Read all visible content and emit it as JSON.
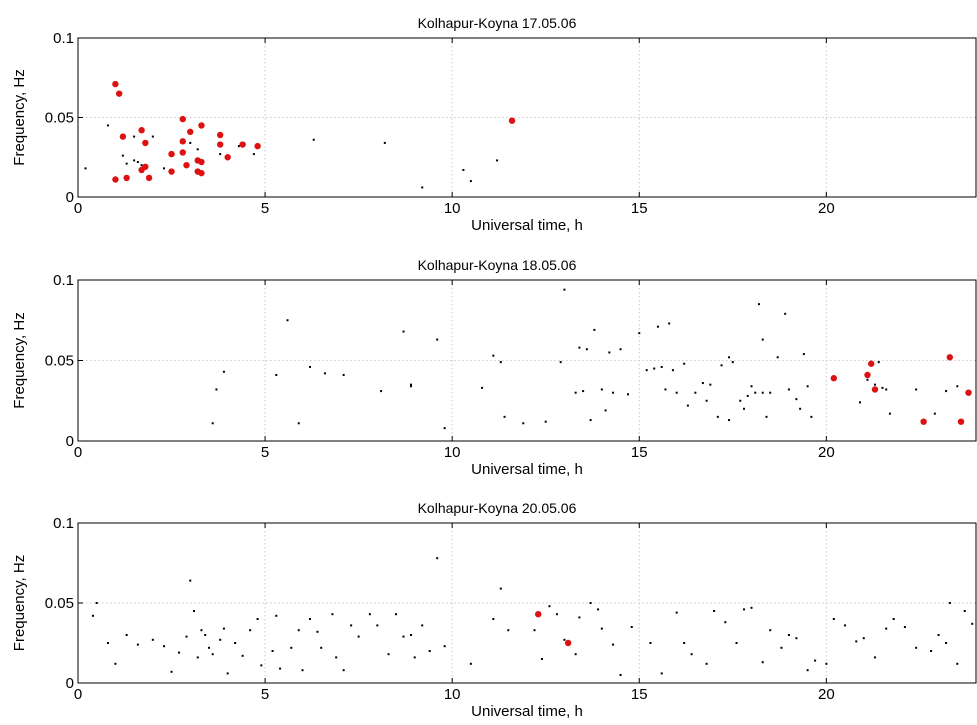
{
  "chart_data": [
    {
      "type": "scatter",
      "title": "Kolhapur-Koyna 17.05.06",
      "xlabel": "Universal time, h",
      "ylabel": "Frequency, Hz",
      "xlim": [
        0,
        24
      ],
      "ylim": [
        0,
        0.1
      ],
      "xticks": [
        0,
        5,
        10,
        15,
        20
      ],
      "yticks": [
        0,
        0.05,
        0.1
      ],
      "xtick_labels": [
        "0",
        "5",
        "10",
        "15",
        "20"
      ],
      "ytick_labels": [
        "0",
        "0.05",
        "0.1"
      ],
      "grid": true,
      "series": [
        {
          "color": "#000000",
          "marker": "small-dot",
          "points": [
            [
              0.2,
              0.018
            ],
            [
              0.8,
              0.045
            ],
            [
              1.2,
              0.026
            ],
            [
              1.3,
              0.021
            ],
            [
              1.5,
              0.038
            ],
            [
              1.5,
              0.023
            ],
            [
              1.6,
              0.022
            ],
            [
              1.7,
              0.02
            ],
            [
              2.0,
              0.038
            ],
            [
              2.3,
              0.018
            ],
            [
              3.0,
              0.034
            ],
            [
              3.2,
              0.03
            ],
            [
              3.8,
              0.027
            ],
            [
              4.3,
              0.032
            ],
            [
              4.7,
              0.027
            ],
            [
              6.3,
              0.036
            ],
            [
              8.2,
              0.034
            ],
            [
              9.2,
              0.006
            ],
            [
              10.3,
              0.017
            ],
            [
              10.5,
              0.01
            ],
            [
              11.2,
              0.023
            ]
          ]
        },
        {
          "color": "#dd1111",
          "marker": "large-dot",
          "points": [
            [
              1.0,
              0.011
            ],
            [
              1.0,
              0.071
            ],
            [
              1.1,
              0.065
            ],
            [
              1.2,
              0.038
            ],
            [
              1.3,
              0.012
            ],
            [
              1.7,
              0.042
            ],
            [
              1.7,
              0.017
            ],
            [
              1.8,
              0.034
            ],
            [
              1.8,
              0.019
            ],
            [
              1.9,
              0.012
            ],
            [
              2.5,
              0.016
            ],
            [
              2.5,
              0.027
            ],
            [
              2.8,
              0.049
            ],
            [
              2.8,
              0.035
            ],
            [
              2.8,
              0.028
            ],
            [
              2.9,
              0.02
            ],
            [
              3.0,
              0.041
            ],
            [
              3.2,
              0.023
            ],
            [
              3.2,
              0.016
            ],
            [
              3.3,
              0.045
            ],
            [
              3.3,
              0.022
            ],
            [
              3.3,
              0.015
            ],
            [
              3.8,
              0.039
            ],
            [
              3.8,
              0.033
            ],
            [
              4.0,
              0.025
            ],
            [
              4.4,
              0.033
            ],
            [
              4.8,
              0.032
            ],
            [
              11.6,
              0.048
            ]
          ]
        }
      ]
    },
    {
      "type": "scatter",
      "title": "Kolhapur-Koyna 18.05.06",
      "xlabel": "Universal time, h",
      "ylabel": "Frequency, Hz",
      "xlim": [
        0,
        24
      ],
      "ylim": [
        0,
        0.1
      ],
      "xticks": [
        0,
        5,
        10,
        15,
        20
      ],
      "yticks": [
        0,
        0.05,
        0.1
      ],
      "xtick_labels": [
        "0",
        "5",
        "10",
        "15",
        "20"
      ],
      "ytick_labels": [
        "0",
        "0.05",
        "0.1"
      ],
      "grid": true,
      "series": [
        {
          "color": "#000000",
          "marker": "small-dot",
          "points": [
            [
              3.6,
              0.011
            ],
            [
              3.7,
              0.032
            ],
            [
              3.9,
              0.043
            ],
            [
              5.3,
              0.041
            ],
            [
              5.6,
              0.075
            ],
            [
              5.9,
              0.011
            ],
            [
              6.2,
              0.046
            ],
            [
              6.6,
              0.042
            ],
            [
              7.1,
              0.041
            ],
            [
              8.1,
              0.031
            ],
            [
              8.7,
              0.068
            ],
            [
              8.9,
              0.034
            ],
            [
              8.9,
              0.035
            ],
            [
              9.6,
              0.063
            ],
            [
              9.8,
              0.008
            ],
            [
              10.8,
              0.033
            ],
            [
              11.1,
              0.053
            ],
            [
              11.3,
              0.049
            ],
            [
              11.4,
              0.015
            ],
            [
              11.9,
              0.011
            ],
            [
              12.5,
              0.012
            ],
            [
              12.9,
              0.049
            ],
            [
              13.0,
              0.094
            ],
            [
              13.3,
              0.03
            ],
            [
              13.4,
              0.058
            ],
            [
              13.5,
              0.031
            ],
            [
              13.6,
              0.057
            ],
            [
              13.7,
              0.013
            ],
            [
              13.8,
              0.069
            ],
            [
              14.0,
              0.032
            ],
            [
              14.1,
              0.019
            ],
            [
              14.2,
              0.055
            ],
            [
              14.3,
              0.03
            ],
            [
              14.5,
              0.057
            ],
            [
              14.7,
              0.029
            ],
            [
              15.0,
              0.067
            ],
            [
              15.2,
              0.044
            ],
            [
              15.4,
              0.045
            ],
            [
              15.5,
              0.071
            ],
            [
              15.6,
              0.046
            ],
            [
              15.7,
              0.032
            ],
            [
              15.8,
              0.073
            ],
            [
              15.9,
              0.044
            ],
            [
              16.0,
              0.03
            ],
            [
              16.2,
              0.048
            ],
            [
              16.3,
              0.022
            ],
            [
              16.5,
              0.03
            ],
            [
              16.7,
              0.036
            ],
            [
              16.8,
              0.025
            ],
            [
              16.9,
              0.035
            ],
            [
              17.1,
              0.015
            ],
            [
              17.2,
              0.047
            ],
            [
              17.4,
              0.052
            ],
            [
              17.4,
              0.013
            ],
            [
              17.5,
              0.049
            ],
            [
              17.7,
              0.025
            ],
            [
              17.8,
              0.02
            ],
            [
              17.9,
              0.028
            ],
            [
              18.0,
              0.034
            ],
            [
              18.1,
              0.03
            ],
            [
              18.2,
              0.085
            ],
            [
              18.3,
              0.03
            ],
            [
              18.3,
              0.063
            ],
            [
              18.4,
              0.015
            ],
            [
              18.5,
              0.03
            ],
            [
              18.7,
              0.052
            ],
            [
              18.9,
              0.079
            ],
            [
              19.0,
              0.032
            ],
            [
              19.2,
              0.026
            ],
            [
              19.3,
              0.02
            ],
            [
              19.4,
              0.054
            ],
            [
              19.5,
              0.034
            ],
            [
              19.6,
              0.015
            ],
            [
              20.9,
              0.024
            ],
            [
              21.1,
              0.038
            ],
            [
              21.3,
              0.035
            ],
            [
              21.4,
              0.049
            ],
            [
              21.5,
              0.033
            ],
            [
              21.6,
              0.032
            ],
            [
              21.7,
              0.017
            ],
            [
              22.4,
              0.032
            ],
            [
              22.9,
              0.017
            ],
            [
              23.2,
              0.031
            ],
            [
              23.5,
              0.034
            ]
          ]
        },
        {
          "color": "#dd1111",
          "marker": "large-dot",
          "points": [
            [
              20.2,
              0.039
            ],
            [
              21.1,
              0.041
            ],
            [
              21.2,
              0.048
            ],
            [
              21.3,
              0.032
            ],
            [
              22.6,
              0.012
            ],
            [
              23.3,
              0.052
            ],
            [
              23.6,
              0.012
            ],
            [
              23.8,
              0.03
            ]
          ]
        }
      ]
    },
    {
      "type": "scatter",
      "title": "Kolhapur-Koyna 20.05.06",
      "xlabel": "Universal time, h",
      "ylabel": "Frequency, Hz",
      "xlim": [
        0,
        24
      ],
      "ylim": [
        0,
        0.1
      ],
      "xticks": [
        0,
        5,
        10,
        15,
        20
      ],
      "yticks": [
        0,
        0.05,
        0.1
      ],
      "xtick_labels": [
        "0",
        "5",
        "10",
        "15",
        "20"
      ],
      "ytick_labels": [
        "0",
        "0.05",
        "0.1"
      ],
      "grid": true,
      "series": [
        {
          "color": "#000000",
          "marker": "small-dot",
          "points": [
            [
              0.4,
              0.042
            ],
            [
              0.5,
              0.05
            ],
            [
              0.8,
              0.025
            ],
            [
              1.0,
              0.012
            ],
            [
              1.3,
              0.03
            ],
            [
              1.6,
              0.024
            ],
            [
              2.0,
              0.027
            ],
            [
              2.3,
              0.023
            ],
            [
              2.5,
              0.007
            ],
            [
              2.7,
              0.019
            ],
            [
              2.9,
              0.029
            ],
            [
              3.0,
              0.064
            ],
            [
              3.1,
              0.045
            ],
            [
              3.2,
              0.016
            ],
            [
              3.3,
              0.033
            ],
            [
              3.4,
              0.03
            ],
            [
              3.5,
              0.022
            ],
            [
              3.6,
              0.018
            ],
            [
              3.8,
              0.027
            ],
            [
              3.9,
              0.034
            ],
            [
              4.0,
              0.006
            ],
            [
              4.2,
              0.025
            ],
            [
              4.4,
              0.017
            ],
            [
              4.6,
              0.033
            ],
            [
              4.8,
              0.04
            ],
            [
              4.9,
              0.011
            ],
            [
              5.2,
              0.02
            ],
            [
              5.3,
              0.042
            ],
            [
              5.4,
              0.009
            ],
            [
              5.7,
              0.022
            ],
            [
              5.9,
              0.033
            ],
            [
              6.0,
              0.008
            ],
            [
              6.2,
              0.04
            ],
            [
              6.4,
              0.032
            ],
            [
              6.5,
              0.022
            ],
            [
              6.8,
              0.043
            ],
            [
              6.9,
              0.016
            ],
            [
              7.1,
              0.008
            ],
            [
              7.3,
              0.036
            ],
            [
              7.5,
              0.029
            ],
            [
              7.8,
              0.043
            ],
            [
              8.0,
              0.036
            ],
            [
              8.3,
              0.018
            ],
            [
              8.5,
              0.043
            ],
            [
              8.7,
              0.029
            ],
            [
              8.9,
              0.03
            ],
            [
              9.0,
              0.016
            ],
            [
              9.2,
              0.036
            ],
            [
              9.4,
              0.02
            ],
            [
              9.6,
              0.078
            ],
            [
              9.8,
              0.023
            ],
            [
              10.5,
              0.012
            ],
            [
              11.1,
              0.04
            ],
            [
              11.3,
              0.059
            ],
            [
              11.5,
              0.033
            ],
            [
              12.2,
              0.033
            ],
            [
              12.4,
              0.015
            ],
            [
              12.6,
              0.048
            ],
            [
              12.8,
              0.043
            ],
            [
              13.0,
              0.027
            ],
            [
              13.3,
              0.018
            ],
            [
              13.4,
              0.041
            ],
            [
              13.7,
              0.05
            ],
            [
              13.9,
              0.046
            ],
            [
              14.0,
              0.034
            ],
            [
              14.3,
              0.024
            ],
            [
              14.5,
              0.005
            ],
            [
              14.8,
              0.035
            ],
            [
              15.3,
              0.025
            ],
            [
              15.6,
              0.006
            ],
            [
              16.0,
              0.044
            ],
            [
              16.2,
              0.025
            ],
            [
              16.4,
              0.018
            ],
            [
              16.8,
              0.012
            ],
            [
              17.0,
              0.045
            ],
            [
              17.3,
              0.038
            ],
            [
              17.6,
              0.025
            ],
            [
              17.8,
              0.046
            ],
            [
              18.0,
              0.047
            ],
            [
              18.3,
              0.013
            ],
            [
              18.5,
              0.033
            ],
            [
              18.8,
              0.022
            ],
            [
              19.0,
              0.03
            ],
            [
              19.2,
              0.028
            ],
            [
              19.5,
              0.008
            ],
            [
              19.7,
              0.014
            ],
            [
              20.0,
              0.012
            ],
            [
              20.2,
              0.04
            ],
            [
              20.5,
              0.036
            ],
            [
              20.8,
              0.026
            ],
            [
              21.0,
              0.028
            ],
            [
              21.3,
              0.016
            ],
            [
              21.6,
              0.034
            ],
            [
              21.8,
              0.04
            ],
            [
              22.1,
              0.035
            ],
            [
              22.4,
              0.022
            ],
            [
              22.8,
              0.02
            ],
            [
              23.0,
              0.03
            ],
            [
              23.2,
              0.025
            ],
            [
              23.3,
              0.05
            ],
            [
              23.5,
              0.012
            ],
            [
              23.7,
              0.045
            ],
            [
              23.9,
              0.037
            ]
          ]
        },
        {
          "color": "#dd1111",
          "marker": "large-dot",
          "points": [
            [
              12.3,
              0.043
            ],
            [
              13.1,
              0.025
            ]
          ]
        }
      ]
    }
  ]
}
